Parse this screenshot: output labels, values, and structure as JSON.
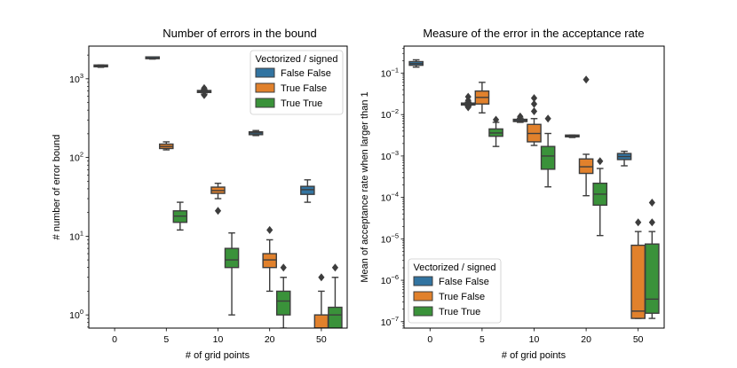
{
  "colors": {
    "False False": "#3274a1",
    "True False": "#e1812c",
    "True True": "#3a923a",
    "median": "#3d3d3d"
  },
  "chart_data": [
    {
      "type": "box",
      "title": "Number of errors in the bound",
      "xlabel": "# of grid points",
      "ylabel": "# number of error bound",
      "yscale": "log",
      "ylim": [
        0.68,
        2600
      ],
      "categories": [
        "0",
        "5",
        "10",
        "20",
        "50"
      ],
      "ytick_labels": [
        {
          "value": 1,
          "base": "10",
          "exp": "0"
        },
        {
          "value": 10,
          "base": "10",
          "exp": "1"
        },
        {
          "value": 100,
          "base": "10",
          "exp": "2"
        },
        {
          "value": 1000,
          "base": "10",
          "exp": "3"
        }
      ],
      "legend": {
        "title": "Vectorized / signed",
        "position": "upper right",
        "entries": [
          "False False",
          "True False",
          "True True"
        ]
      },
      "series": [
        {
          "name": "False False",
          "boxes": [
            {
              "category": "0",
              "whislo": 1400,
              "q1": 1420,
              "med": 1450,
              "q3": 1480,
              "whishi": 1500,
              "fliers": []
            },
            {
              "category": "5",
              "whislo": 1780,
              "q1": 1800,
              "med": 1820,
              "q3": 1840,
              "whishi": 1860,
              "fliers": []
            },
            {
              "category": "10",
              "whislo": 640,
              "q1": 670,
              "med": 690,
              "q3": 710,
              "whishi": 730,
              "fliers": [
                620,
                760
              ]
            },
            {
              "category": "20",
              "whislo": 190,
              "q1": 195,
              "med": 205,
              "q3": 212,
              "whishi": 220,
              "fliers": []
            },
            {
              "category": "50",
              "whislo": 27,
              "q1": 34,
              "med": 39,
              "q3": 43,
              "whishi": 52,
              "fliers": []
            }
          ]
        },
        {
          "name": "True False",
          "boxes": [
            {
              "category": "5",
              "whislo": 125,
              "q1": 130,
              "med": 138,
              "q3": 148,
              "whishi": 158,
              "fliers": []
            },
            {
              "category": "10",
              "whislo": 30,
              "q1": 35,
              "med": 38,
              "q3": 42,
              "whishi": 47,
              "fliers": [
                21
              ]
            },
            {
              "category": "20",
              "whislo": 2,
              "q1": 4,
              "med": 5,
              "q3": 6,
              "whishi": 9,
              "fliers": [
                12
              ]
            },
            {
              "category": "50",
              "whislo": 0.68,
              "q1": 0.68,
              "med": 0.68,
              "q3": 1,
              "whishi": 2,
              "fliers": [
                3
              ]
            }
          ]
        },
        {
          "name": "True True",
          "boxes": [
            {
              "category": "5",
              "whislo": 12,
              "q1": 15,
              "med": 18,
              "q3": 21,
              "whishi": 27,
              "fliers": []
            },
            {
              "category": "10",
              "whislo": 1,
              "q1": 4,
              "med": 5,
              "q3": 7,
              "whishi": 11,
              "fliers": []
            },
            {
              "category": "20",
              "whislo": 0.68,
              "q1": 1,
              "med": 1.5,
              "q3": 2,
              "whishi": 3,
              "fliers": [
                4
              ]
            },
            {
              "category": "50",
              "whislo": 0.68,
              "q1": 0.68,
              "med": 1,
              "q3": 1.25,
              "whishi": 3,
              "fliers": [
                4
              ]
            }
          ]
        }
      ]
    },
    {
      "type": "box",
      "title": "Measure of the error in the acceptance rate",
      "xlabel": "# of grid points",
      "ylabel": "Mean of acceptance rate when larger than 1",
      "yscale": "log",
      "ylim": [
        7e-08,
        0.45
      ],
      "categories": [
        "0",
        "5",
        "10",
        "20",
        "50"
      ],
      "ytick_labels": [
        {
          "value": 1e-07,
          "base": "10",
          "exp": "−7"
        },
        {
          "value": 1e-06,
          "base": "10",
          "exp": "−6"
        },
        {
          "value": 1e-05,
          "base": "10",
          "exp": "−5"
        },
        {
          "value": 0.0001,
          "base": "10",
          "exp": "−4"
        },
        {
          "value": 0.001,
          "base": "10",
          "exp": "−3"
        },
        {
          "value": 0.01,
          "base": "10",
          "exp": "−2"
        },
        {
          "value": 0.1,
          "base": "10",
          "exp": "−1"
        }
      ],
      "legend": {
        "title": "Vectorized / signed",
        "position": "lower left",
        "entries": [
          "False False",
          "True False",
          "True True"
        ]
      },
      "series": [
        {
          "name": "False False",
          "boxes": [
            {
              "category": "0",
              "whislo": 0.14,
              "q1": 0.155,
              "med": 0.17,
              "q3": 0.19,
              "whishi": 0.21,
              "fliers": []
            },
            {
              "category": "5",
              "whislo": 0.016,
              "q1": 0.017,
              "med": 0.018,
              "q3": 0.019,
              "whishi": 0.02,
              "fliers": [
                0.015,
                0.022,
                0.027
              ]
            },
            {
              "category": "10",
              "whislo": 0.0065,
              "q1": 0.0068,
              "med": 0.0072,
              "q3": 0.0077,
              "whishi": 0.0082,
              "fliers": [
                0.009
              ]
            },
            {
              "category": "20",
              "whislo": 0.0028,
              "q1": 0.0029,
              "med": 0.003,
              "q3": 0.0031,
              "whishi": 0.0032,
              "fliers": []
            },
            {
              "category": "50",
              "whislo": 0.00058,
              "q1": 0.00082,
              "med": 0.00097,
              "q3": 0.00115,
              "whishi": 0.0013,
              "fliers": []
            }
          ]
        },
        {
          "name": "True False",
          "boxes": [
            {
              "category": "5",
              "whislo": 0.011,
              "q1": 0.018,
              "med": 0.026,
              "q3": 0.037,
              "whishi": 0.06,
              "fliers": []
            },
            {
              "category": "10",
              "whislo": 0.0018,
              "q1": 0.0022,
              "med": 0.0035,
              "q3": 0.0058,
              "whishi": 0.008,
              "fliers": [
                0.012,
                0.018,
                0.025
              ]
            },
            {
              "category": "20",
              "whislo": 0.00011,
              "q1": 0.00038,
              "med": 0.00055,
              "q3": 0.00085,
              "whishi": 0.0011,
              "fliers": [
                0.07
              ]
            },
            {
              "category": "50",
              "whislo": 1.2e-07,
              "q1": 1.2e-07,
              "med": 1.8e-07,
              "q3": 7e-06,
              "whishi": 1.5e-05,
              "fliers": [
                2.5e-05
              ]
            }
          ]
        },
        {
          "name": "True True",
          "boxes": [
            {
              "category": "5",
              "whislo": 0.0017,
              "q1": 0.003,
              "med": 0.0036,
              "q3": 0.0045,
              "whishi": 0.0065,
              "fliers": [
                0.0075
              ]
            },
            {
              "category": "10",
              "whislo": 0.00018,
              "q1": 0.00048,
              "med": 0.001,
              "q3": 0.0017,
              "whishi": 0.0035,
              "fliers": [
                0.008
              ]
            },
            {
              "category": "20",
              "whislo": 1.2e-05,
              "q1": 6.5e-05,
              "med": 0.00012,
              "q3": 0.00022,
              "whishi": 0.0005,
              "fliers": [
                0.00075
              ]
            },
            {
              "category": "50",
              "whislo": 1.2e-07,
              "q1": 1.6e-07,
              "med": 3.5e-07,
              "q3": 7.5e-06,
              "whishi": 1.5e-05,
              "fliers": [
                2.5e-05,
                7.5e-05
              ]
            }
          ]
        }
      ]
    }
  ]
}
